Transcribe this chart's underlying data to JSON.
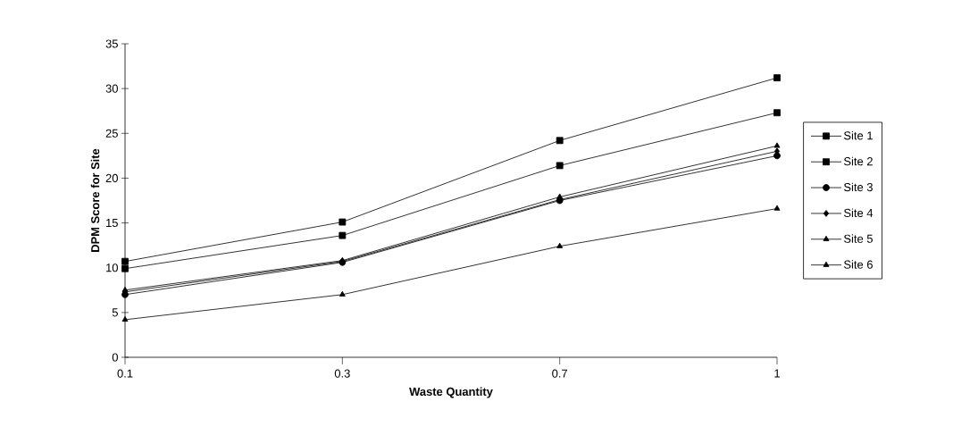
{
  "chart_data": {
    "type": "line",
    "xlabel": "Waste Quantity",
    "ylabel": "DPM Score for Site",
    "categories": [
      "0.1",
      "0.3",
      "0.7",
      "1"
    ],
    "series": [
      {
        "name": "Site 1",
        "color": "#000000",
        "marker": "square",
        "values": [
          10.7,
          15.1,
          24.2,
          31.2
        ]
      },
      {
        "name": "Site 2",
        "color": "#000000",
        "marker": "square",
        "values": [
          9.9,
          13.6,
          21.4,
          27.3
        ]
      },
      {
        "name": "Site 3",
        "color": "#000000",
        "marker": "circle",
        "values": [
          7.0,
          10.6,
          17.5,
          22.5
        ]
      },
      {
        "name": "Site 4",
        "color": "#000000",
        "marker": "diamond",
        "values": [
          7.3,
          10.7,
          17.6,
          23.0
        ]
      },
      {
        "name": "Site 5",
        "color": "#000000",
        "marker": "triangle",
        "values": [
          7.5,
          10.8,
          17.9,
          23.6
        ]
      },
      {
        "name": "Site 6",
        "color": "#000000",
        "marker": "triangle",
        "values": [
          4.2,
          7.0,
          12.4,
          16.6
        ]
      }
    ],
    "ylim": [
      0,
      35
    ],
    "yticks": [
      0,
      5,
      10,
      15,
      20,
      25,
      30,
      35
    ],
    "grid": false,
    "legend": "right",
    "line_style": "solid"
  }
}
